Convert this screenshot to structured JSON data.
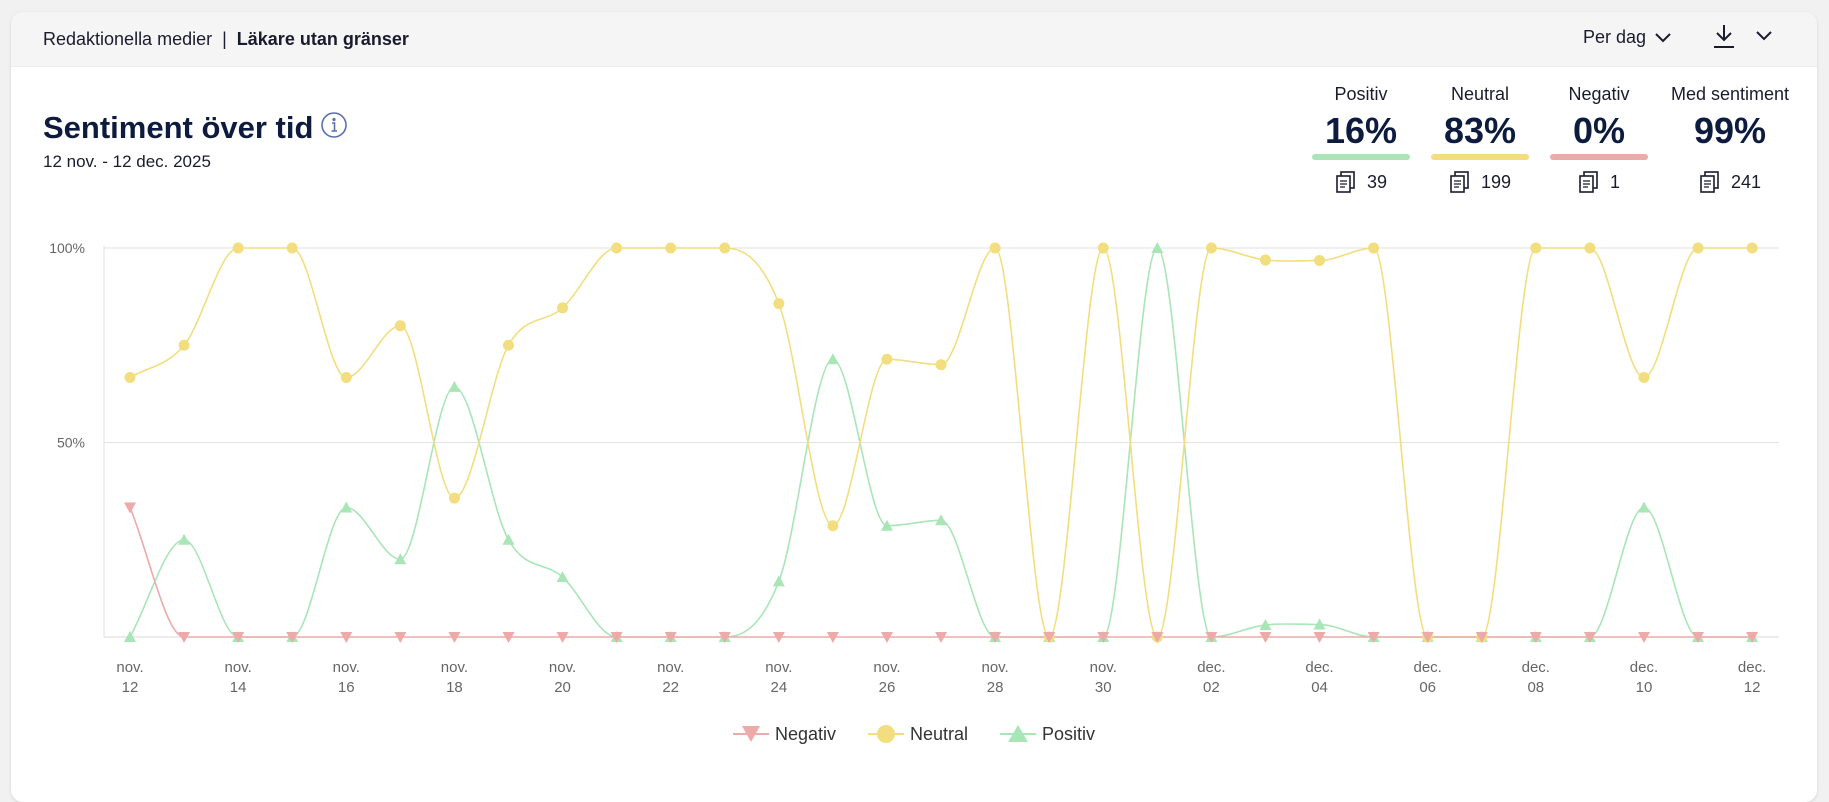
{
  "header": {
    "breadcrumb_root": "Redaktionella medier",
    "breadcrumb_separator": "|",
    "breadcrumb_current": "Läkare utan gränser",
    "period_select": "Per dag",
    "download_icon": "download-icon",
    "dropdown_icon": "chevron-down-icon"
  },
  "panel": {
    "title": "Sentiment över tid",
    "info_icon": "info-icon",
    "date_range": "12 nov. - 12 dec. 2025"
  },
  "stats": [
    {
      "label": "Positiv",
      "percent": "16%",
      "count": "39",
      "color": "#a9e5b7"
    },
    {
      "label": "Neutral",
      "percent": "83%",
      "count": "199",
      "color": "#f2de7e"
    },
    {
      "label": "Negativ",
      "percent": "0%",
      "count": "1",
      "color": "#ecaaa8"
    },
    {
      "label": "Med sentiment",
      "percent": "99%",
      "count": "241",
      "color": ""
    }
  ],
  "chart_data": {
    "type": "line",
    "title": "",
    "xlabel": "",
    "ylabel": "",
    "ylim": [
      0,
      100
    ],
    "y_ticks": [
      "100%",
      "50%"
    ],
    "y_tick_values": [
      100,
      50
    ],
    "x_tick_labels": [
      [
        "nov.",
        "12"
      ],
      [
        "nov.",
        "14"
      ],
      [
        "nov.",
        "16"
      ],
      [
        "nov.",
        "18"
      ],
      [
        "nov.",
        "20"
      ],
      [
        "nov.",
        "22"
      ],
      [
        "nov.",
        "24"
      ],
      [
        "nov.",
        "26"
      ],
      [
        "nov.",
        "28"
      ],
      [
        "nov.",
        "30"
      ],
      [
        "dec.",
        "02"
      ],
      [
        "dec.",
        "04"
      ],
      [
        "dec.",
        "06"
      ],
      [
        "dec.",
        "08"
      ],
      [
        "dec.",
        "10"
      ],
      [
        "dec.",
        "12"
      ]
    ],
    "categories": [
      "12 nov",
      "13 nov",
      "14 nov",
      "15 nov",
      "16 nov",
      "17 nov",
      "18 nov",
      "19 nov",
      "20 nov",
      "21 nov",
      "22 nov",
      "23 nov",
      "24 nov",
      "25 nov",
      "26 nov",
      "27 nov",
      "28 nov",
      "29 nov",
      "30 nov",
      "1 dec",
      "2 dec",
      "3 dec",
      "4 dec",
      "5 dec",
      "6 dec",
      "7 dec",
      "8 dec",
      "9 dec",
      "10 dec",
      "11 dec",
      "12 dec"
    ],
    "grid": "horizontal",
    "legend_position": "bottom",
    "series": [
      {
        "name": "Negativ",
        "color": "#ecaaa8",
        "marker": "triangle-down",
        "values": [
          33.3,
          0,
          0,
          0,
          0,
          0,
          0,
          0,
          0,
          0,
          0,
          0,
          0,
          0,
          0,
          0,
          0,
          0,
          0,
          0,
          0,
          0,
          0,
          0,
          0,
          0,
          0,
          0,
          0,
          0,
          0
        ]
      },
      {
        "name": "Neutral",
        "color": "#f2de7e",
        "marker": "circle",
        "values": [
          66.7,
          75,
          100,
          100,
          66.7,
          80,
          35.7,
          75,
          84.6,
          100,
          100,
          100,
          85.7,
          28.6,
          71.4,
          70,
          100,
          0,
          100,
          0,
          100,
          96.9,
          96.8,
          100,
          0,
          0,
          100,
          100,
          66.7,
          100,
          100
        ]
      },
      {
        "name": "Positiv",
        "color": "#a9e5b7",
        "marker": "triangle-up",
        "values": [
          0,
          25,
          0,
          0,
          33.3,
          20,
          64.3,
          25,
          15.4,
          0,
          0,
          0,
          14.3,
          71.4,
          28.6,
          30,
          0,
          0,
          0,
          100,
          0,
          3.1,
          3.2,
          0,
          0,
          0,
          0,
          0,
          33.3,
          0,
          0
        ]
      }
    ]
  }
}
